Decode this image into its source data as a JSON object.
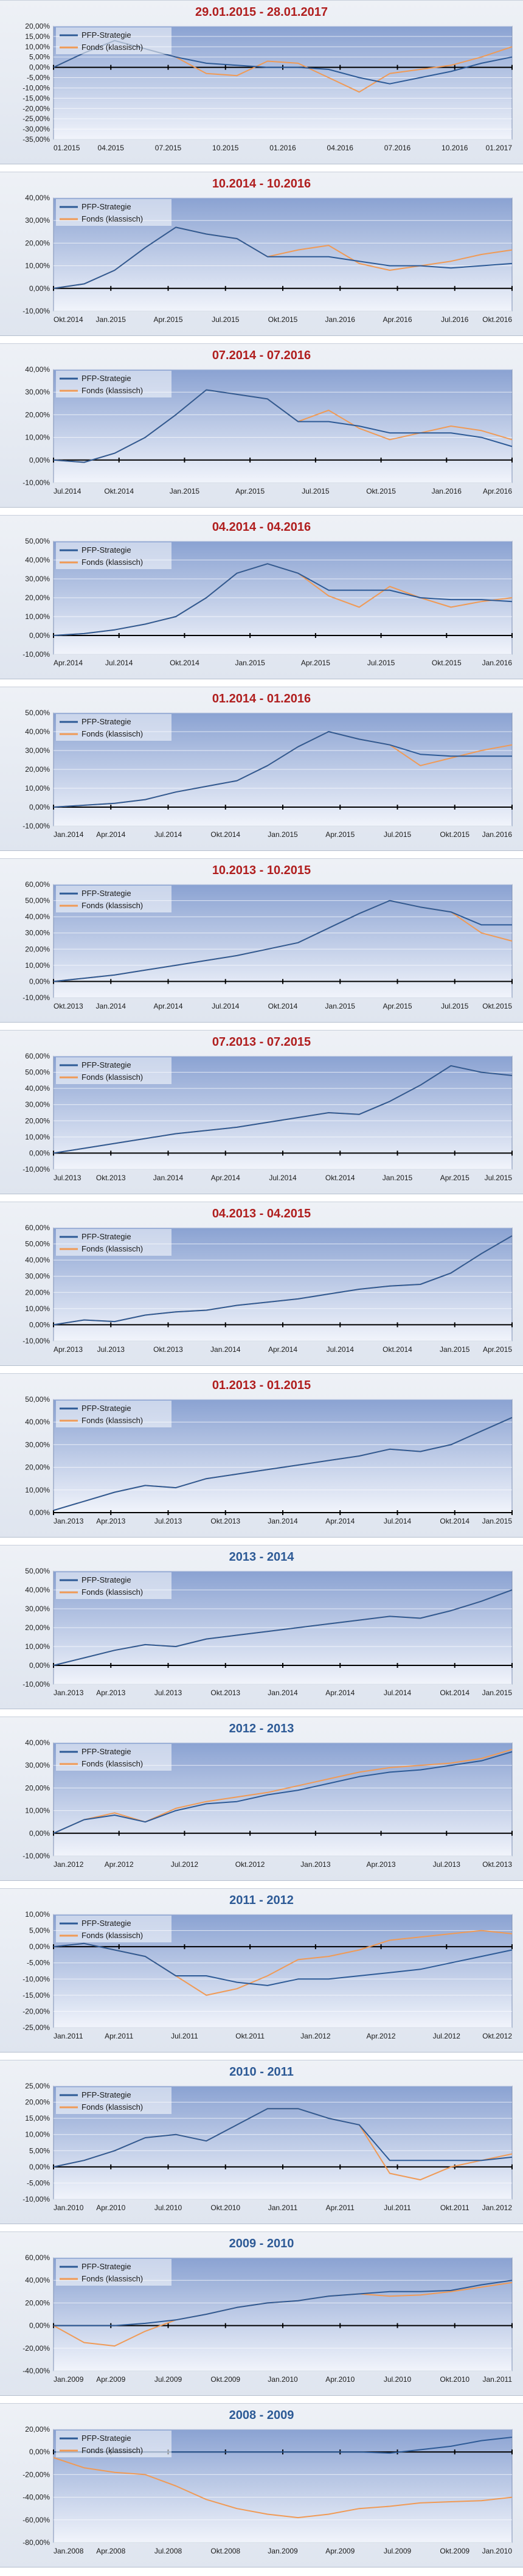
{
  "colors": {
    "strategy": "#2d5a96",
    "fund": "#f09a55",
    "title_red": "#b01e1e",
    "title_blue": "#2d5a96",
    "plot_top": "#8aa2d2",
    "plot_bottom": "#f1f4fb"
  },
  "legend": {
    "strategy": "PFP-Strategie",
    "fund": "Fonds (klassisch)"
  },
  "chart_data": [
    {
      "type": "line",
      "title": "29.01.2015 - 28.01.2017",
      "title_color": "red",
      "ylim": [
        -35,
        20
      ],
      "ystep": 5,
      "yticks": [
        "20,00%",
        "15,00%",
        "10,00%",
        "5,00%",
        "0,00%",
        "-5,00%",
        "-10,00%",
        "-15,00%",
        "-20,00%",
        "-25,00%",
        "-30,00%",
        "-35,00%"
      ],
      "xticks": [
        "01.2015",
        "04.2015",
        "07.2015",
        "10.2015",
        "01.2016",
        "04.2016",
        "07.2016",
        "10.2016",
        "01.2017"
      ],
      "series": [
        {
          "name": "PFP-Strategie",
          "values": [
            0,
            7,
            13,
            9,
            5,
            2,
            1,
            0,
            0,
            -1,
            -5,
            -8,
            -5,
            -2,
            2,
            5
          ]
        },
        {
          "name": "Fonds (klassisch)",
          "values": [
            0,
            7,
            13,
            9,
            5,
            -3,
            -4,
            3,
            2,
            -5,
            -12,
            -3,
            -1,
            1,
            5,
            10
          ]
        }
      ]
    },
    {
      "type": "line",
      "title": "10.2014 - 10.2016",
      "title_color": "red",
      "ylim": [
        -10,
        40
      ],
      "ystep": 10,
      "yticks": [
        "40,00%",
        "30,00%",
        "20,00%",
        "10,00%",
        "0,00%",
        "-10,00%"
      ],
      "xticks": [
        "Okt.2014",
        "Jan.2015",
        "Apr.2015",
        "Jul.2015",
        "Okt.2015",
        "Jan.2016",
        "Apr.2016",
        "Jul.2016",
        "Okt.2016"
      ],
      "series": [
        {
          "name": "PFP-Strategie",
          "values": [
            0,
            2,
            8,
            18,
            27,
            24,
            22,
            14,
            14,
            14,
            12,
            10,
            10,
            9,
            10,
            11
          ]
        },
        {
          "name": "Fonds (klassisch)",
          "values": [
            0,
            2,
            8,
            18,
            27,
            24,
            22,
            14,
            17,
            19,
            11,
            8,
            10,
            12,
            15,
            17
          ]
        }
      ]
    },
    {
      "type": "line",
      "title": "07.2014 - 07.2016",
      "title_color": "red",
      "ylim": [
        -10,
        40
      ],
      "ystep": 10,
      "yticks": [
        "40,00%",
        "30,00%",
        "20,00%",
        "10,00%",
        "0,00%",
        "-10,00%"
      ],
      "xticks": [
        "Jul.2014",
        "Okt.2014",
        "Jan.2015",
        "Apr.2015",
        "Jul.2015",
        "Okt.2015",
        "Jan.2016",
        "Apr.2016"
      ],
      "series": [
        {
          "name": "PFP-Strategie",
          "values": [
            0,
            -1,
            3,
            10,
            20,
            31,
            29,
            27,
            17,
            17,
            15,
            12,
            12,
            12,
            10,
            6
          ]
        },
        {
          "name": "Fonds (klassisch)",
          "values": [
            0,
            -1,
            3,
            10,
            20,
            31,
            29,
            27,
            17,
            22,
            14,
            9,
            12,
            15,
            13,
            9
          ]
        }
      ]
    },
    {
      "type": "line",
      "title": "04.2014 - 04.2016",
      "title_color": "red",
      "ylim": [
        -10,
        50
      ],
      "ystep": 10,
      "yticks": [
        "50,00%",
        "40,00%",
        "30,00%",
        "20,00%",
        "10,00%",
        "0,00%",
        "-10,00%"
      ],
      "xticks": [
        "Apr.2014",
        "Jul.2014",
        "Okt.2014",
        "Jan.2015",
        "Apr.2015",
        "Jul.2015",
        "Okt.2015",
        "Jan.2016"
      ],
      "series": [
        {
          "name": "PFP-Strategie",
          "values": [
            0,
            1,
            3,
            6,
            10,
            20,
            33,
            38,
            33,
            24,
            24,
            24,
            20,
            19,
            19,
            18
          ]
        },
        {
          "name": "Fonds (klassisch)",
          "values": [
            0,
            1,
            3,
            6,
            10,
            20,
            33,
            38,
            33,
            21,
            15,
            26,
            20,
            15,
            18,
            20
          ]
        }
      ]
    },
    {
      "type": "line",
      "title": "01.2014 - 01.2016",
      "title_color": "red",
      "ylim": [
        -10,
        50
      ],
      "ystep": 10,
      "yticks": [
        "50,00%",
        "40,00%",
        "30,00%",
        "20,00%",
        "10,00%",
        "0,00%",
        "-10,00%"
      ],
      "xticks": [
        "Jan.2014",
        "Apr.2014",
        "Jul.2014",
        "Okt.2014",
        "Jan.2015",
        "Apr.2015",
        "Jul.2015",
        "Okt.2015",
        "Jan.2016"
      ],
      "series": [
        {
          "name": "PFP-Strategie",
          "values": [
            0,
            1,
            2,
            4,
            8,
            11,
            14,
            22,
            32,
            40,
            36,
            33,
            28,
            27,
            27,
            27
          ]
        },
        {
          "name": "Fonds (klassisch)",
          "values": [
            0,
            1,
            2,
            4,
            8,
            11,
            14,
            22,
            32,
            40,
            36,
            33,
            22,
            26,
            30,
            33
          ]
        }
      ]
    },
    {
      "type": "line",
      "title": "10.2013 - 10.2015",
      "title_color": "red",
      "ylim": [
        -10,
        60
      ],
      "ystep": 10,
      "yticks": [
        "60,00%",
        "50,00%",
        "40,00%",
        "30,00%",
        "20,00%",
        "10,00%",
        "0,00%",
        "-10,00%"
      ],
      "xticks": [
        "Okt.2013",
        "Jan.2014",
        "Apr.2014",
        "Jul.2014",
        "Okt.2014",
        "Jan.2015",
        "Apr.2015",
        "Jul.2015",
        "Okt.2015"
      ],
      "series": [
        {
          "name": "PFP-Strategie",
          "values": [
            0,
            2,
            4,
            7,
            10,
            13,
            16,
            20,
            24,
            33,
            42,
            50,
            46,
            43,
            35,
            35
          ]
        },
        {
          "name": "Fonds (klassisch)",
          "values": [
            0,
            2,
            4,
            7,
            10,
            13,
            16,
            20,
            24,
            33,
            42,
            50,
            46,
            43,
            30,
            25
          ]
        }
      ]
    },
    {
      "type": "line",
      "title": "07.2013 - 07.2015",
      "title_color": "red",
      "ylim": [
        -10,
        60
      ],
      "ystep": 10,
      "yticks": [
        "60,00%",
        "50,00%",
        "40,00%",
        "30,00%",
        "20,00%",
        "10,00%",
        "0,00%",
        "-10,00%"
      ],
      "xticks": [
        "Jul.2013",
        "Okt.2013",
        "Jan.2014",
        "Apr.2014",
        "Jul.2014",
        "Okt.2014",
        "Jan.2015",
        "Apr.2015",
        "Jul.2015"
      ],
      "series": [
        {
          "name": "PFP-Strategie",
          "values": [
            0,
            3,
            6,
            9,
            12,
            14,
            16,
            19,
            22,
            25,
            24,
            32,
            42,
            54,
            50,
            48
          ]
        },
        {
          "name": "Fonds (klassisch)",
          "values": [
            0,
            3,
            6,
            9,
            12,
            14,
            16,
            19,
            22,
            25,
            24,
            32,
            42,
            54,
            50,
            48
          ]
        }
      ]
    },
    {
      "type": "line",
      "title": "04.2013 - 04.2015",
      "title_color": "red",
      "ylim": [
        -10,
        60
      ],
      "ystep": 10,
      "yticks": [
        "60,00%",
        "50,00%",
        "40,00%",
        "30,00%",
        "20,00%",
        "10,00%",
        "0,00%",
        "-10,00%"
      ],
      "xticks": [
        "Apr.2013",
        "Jul.2013",
        "Okt.2013",
        "Jan.2014",
        "Apr.2014",
        "Jul.2014",
        "Okt.2014",
        "Jan.2015",
        "Apr.2015"
      ],
      "series": [
        {
          "name": "PFP-Strategie",
          "values": [
            0,
            3,
            2,
            6,
            8,
            9,
            12,
            14,
            16,
            19,
            22,
            24,
            25,
            32,
            44,
            55
          ]
        },
        {
          "name": "Fonds (klassisch)",
          "values": [
            0,
            3,
            2,
            6,
            8,
            9,
            12,
            14,
            16,
            19,
            22,
            24,
            25,
            32,
            44,
            55
          ]
        }
      ]
    },
    {
      "type": "line",
      "title": "01.2013 - 01.2015",
      "title_color": "red",
      "ylim": [
        0,
        50
      ],
      "ystep": 10,
      "yticks": [
        "50,00%",
        "40,00%",
        "30,00%",
        "20,00%",
        "10,00%",
        "0,00%"
      ],
      "xticks": [
        "Jan.2013",
        "Apr.2013",
        "Jul.2013",
        "Okt.2013",
        "Jan.2014",
        "Apr.2014",
        "Jul.2014",
        "Okt.2014",
        "Jan.2015"
      ],
      "series": [
        {
          "name": "PFP-Strategie",
          "values": [
            1,
            5,
            9,
            12,
            11,
            15,
            17,
            19,
            21,
            23,
            25,
            28,
            27,
            30,
            36,
            42
          ]
        },
        {
          "name": "Fonds (klassisch)",
          "values": [
            1,
            5,
            9,
            12,
            11,
            15,
            17,
            19,
            21,
            23,
            25,
            28,
            27,
            30,
            36,
            42
          ]
        }
      ]
    },
    {
      "type": "line",
      "title": "2013 - 2014",
      "title_color": "blue",
      "ylim": [
        -10,
        50
      ],
      "ystep": 10,
      "yticks": [
        "50,00%",
        "40,00%",
        "30,00%",
        "20,00%",
        "10,00%",
        "0,00%",
        "-10,00%"
      ],
      "xticks": [
        "Jan.2013",
        "Apr.2013",
        "Jul.2013",
        "Okt.2013",
        "Jan.2014",
        "Apr.2014",
        "Jul.2014",
        "Okt.2014",
        "Jan.2015"
      ],
      "series": [
        {
          "name": "PFP-Strategie",
          "values": [
            0,
            4,
            8,
            11,
            10,
            14,
            16,
            18,
            20,
            22,
            24,
            26,
            25,
            29,
            34,
            40
          ]
        },
        {
          "name": "Fonds (klassisch)",
          "values": [
            0,
            4,
            8,
            11,
            10,
            14,
            16,
            18,
            20,
            22,
            24,
            26,
            25,
            29,
            34,
            40
          ]
        }
      ]
    },
    {
      "type": "line",
      "title": "2012 - 2013",
      "title_color": "blue",
      "ylim": [
        -10,
        40
      ],
      "ystep": 10,
      "yticks": [
        "40,00%",
        "30,00%",
        "20,00%",
        "10,00%",
        "0,00%",
        "-10,00%"
      ],
      "xticks": [
        "Jan.2012",
        "Apr.2012",
        "Jul.2012",
        "Okt.2012",
        "Jan.2013",
        "Apr.2013",
        "Jul.2013",
        "Okt.2013"
      ],
      "series": [
        {
          "name": "PFP-Strategie",
          "values": [
            0,
            6,
            8,
            5,
            10,
            13,
            14,
            17,
            19,
            22,
            25,
            27,
            28,
            30,
            32,
            36
          ]
        },
        {
          "name": "Fonds (klassisch)",
          "values": [
            0,
            6,
            9,
            5,
            11,
            14,
            16,
            18,
            21,
            24,
            27,
            29,
            30,
            31,
            33,
            37
          ]
        }
      ]
    },
    {
      "type": "line",
      "title": "2011 - 2012",
      "title_color": "blue",
      "ylim": [
        -25,
        10
      ],
      "ystep": 5,
      "yticks": [
        "10,00%",
        "5,00%",
        "0,00%",
        "-5,00%",
        "-10,00%",
        "-15,00%",
        "-20,00%",
        "-25,00%"
      ],
      "xticks": [
        "Jan.2011",
        "Apr.2011",
        "Jul.2011",
        "Okt.2011",
        "Jan.2012",
        "Apr.2012",
        "Jul.2012",
        "Okt.2012"
      ],
      "series": [
        {
          "name": "PFP-Strategie",
          "values": [
            0,
            1,
            -1,
            -3,
            -9,
            -9,
            -11,
            -12,
            -10,
            -10,
            -9,
            -8,
            -7,
            -5,
            -3,
            -1
          ]
        },
        {
          "name": "Fonds (klassisch)",
          "values": [
            0,
            1,
            -1,
            -3,
            -9,
            -15,
            -13,
            -9,
            -4,
            -3,
            -1,
            2,
            3,
            4,
            5,
            4
          ]
        }
      ]
    },
    {
      "type": "line",
      "title": "2010 - 2011",
      "title_color": "blue",
      "ylim": [
        -10,
        25
      ],
      "ystep": 5,
      "yticks": [
        "25,00%",
        "20,00%",
        "15,00%",
        "10,00%",
        "5,00%",
        "0,00%",
        "-5,00%",
        "-10,00%"
      ],
      "xticks": [
        "Jan.2010",
        "Apr.2010",
        "Jul.2010",
        "Okt.2010",
        "Jan.2011",
        "Apr.2011",
        "Jul.2011",
        "Okt.2011",
        "Jan.2012"
      ],
      "series": [
        {
          "name": "PFP-Strategie",
          "values": [
            0,
            2,
            5,
            9,
            10,
            8,
            13,
            18,
            18,
            15,
            13,
            2,
            2,
            2,
            2,
            3
          ]
        },
        {
          "name": "Fonds (klassisch)",
          "values": [
            0,
            2,
            5,
            9,
            10,
            8,
            13,
            18,
            18,
            15,
            13,
            -2,
            -4,
            0,
            2,
            4
          ]
        }
      ]
    },
    {
      "type": "line",
      "title": "2009 - 2010",
      "title_color": "blue",
      "ylim": [
        -40,
        60
      ],
      "ystep": 20,
      "yticks": [
        "60,00%",
        "40,00%",
        "20,00%",
        "0,00%",
        "-20,00%",
        "-40,00%"
      ],
      "xticks": [
        "Jan.2009",
        "Apr.2009",
        "Jul.2009",
        "Okt.2009",
        "Jan.2010",
        "Apr.2010",
        "Jul.2010",
        "Okt.2010",
        "Jan.2011"
      ],
      "series": [
        {
          "name": "PFP-Strategie",
          "values": [
            0,
            0,
            0,
            2,
            5,
            10,
            16,
            20,
            22,
            26,
            28,
            30,
            30,
            31,
            36,
            40
          ]
        },
        {
          "name": "Fonds (klassisch)",
          "values": [
            0,
            -15,
            -18,
            -5,
            5,
            10,
            16,
            20,
            22,
            26,
            28,
            26,
            27,
            30,
            34,
            38
          ]
        }
      ]
    },
    {
      "type": "line",
      "title": "2008 - 2009",
      "title_color": "blue",
      "ylim": [
        -80,
        20
      ],
      "ystep": 20,
      "yticks": [
        "20,00%",
        "0,00%",
        "-20,00%",
        "-40,00%",
        "-60,00%",
        "-80,00%"
      ],
      "xticks": [
        "Jan.2008",
        "Apr.2008",
        "Jul.2008",
        "Okt.2008",
        "Jan.2009",
        "Apr.2009",
        "Jul.2009",
        "Okt.2009",
        "Jan.2010"
      ],
      "series": [
        {
          "name": "PFP-Strategie",
          "values": [
            0,
            0,
            0,
            0,
            0,
            0,
            0,
            0,
            0,
            0,
            0,
            -1,
            2,
            5,
            10,
            13
          ]
        },
        {
          "name": "Fonds (klassisch)",
          "values": [
            -5,
            -14,
            -18,
            -20,
            -30,
            -42,
            -50,
            -55,
            -58,
            -55,
            -50,
            -48,
            -45,
            -44,
            -43,
            -40
          ]
        }
      ]
    }
  ]
}
